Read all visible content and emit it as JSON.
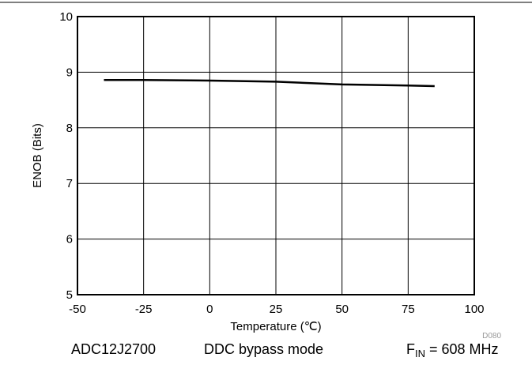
{
  "chart_data": {
    "type": "line",
    "x": [
      -40,
      -25,
      0,
      25,
      50,
      75,
      85
    ],
    "series": [
      {
        "values": [
          8.86,
          8.86,
          8.85,
          8.83,
          8.78,
          8.76,
          8.75
        ]
      }
    ],
    "xlabel": "Temperature (℃)",
    "ylabel": "ENOB (Bits)",
    "xlim": [
      -50,
      100
    ],
    "ylim": [
      5,
      10
    ],
    "xticks": [
      -50,
      -25,
      0,
      25,
      50,
      75,
      100
    ],
    "yticks": [
      5,
      6,
      7,
      8,
      9,
      10
    ],
    "grid": true,
    "figure_id": "D080"
  },
  "footer": {
    "device": "ADC12J2700",
    "mode": "DDC bypass mode",
    "fin_label": "F",
    "fin_subscript": "IN",
    "fin_value": " = 608 MHz"
  },
  "colors": {
    "line": "#000000",
    "grid": "#000000",
    "figure_id": "#999999"
  }
}
